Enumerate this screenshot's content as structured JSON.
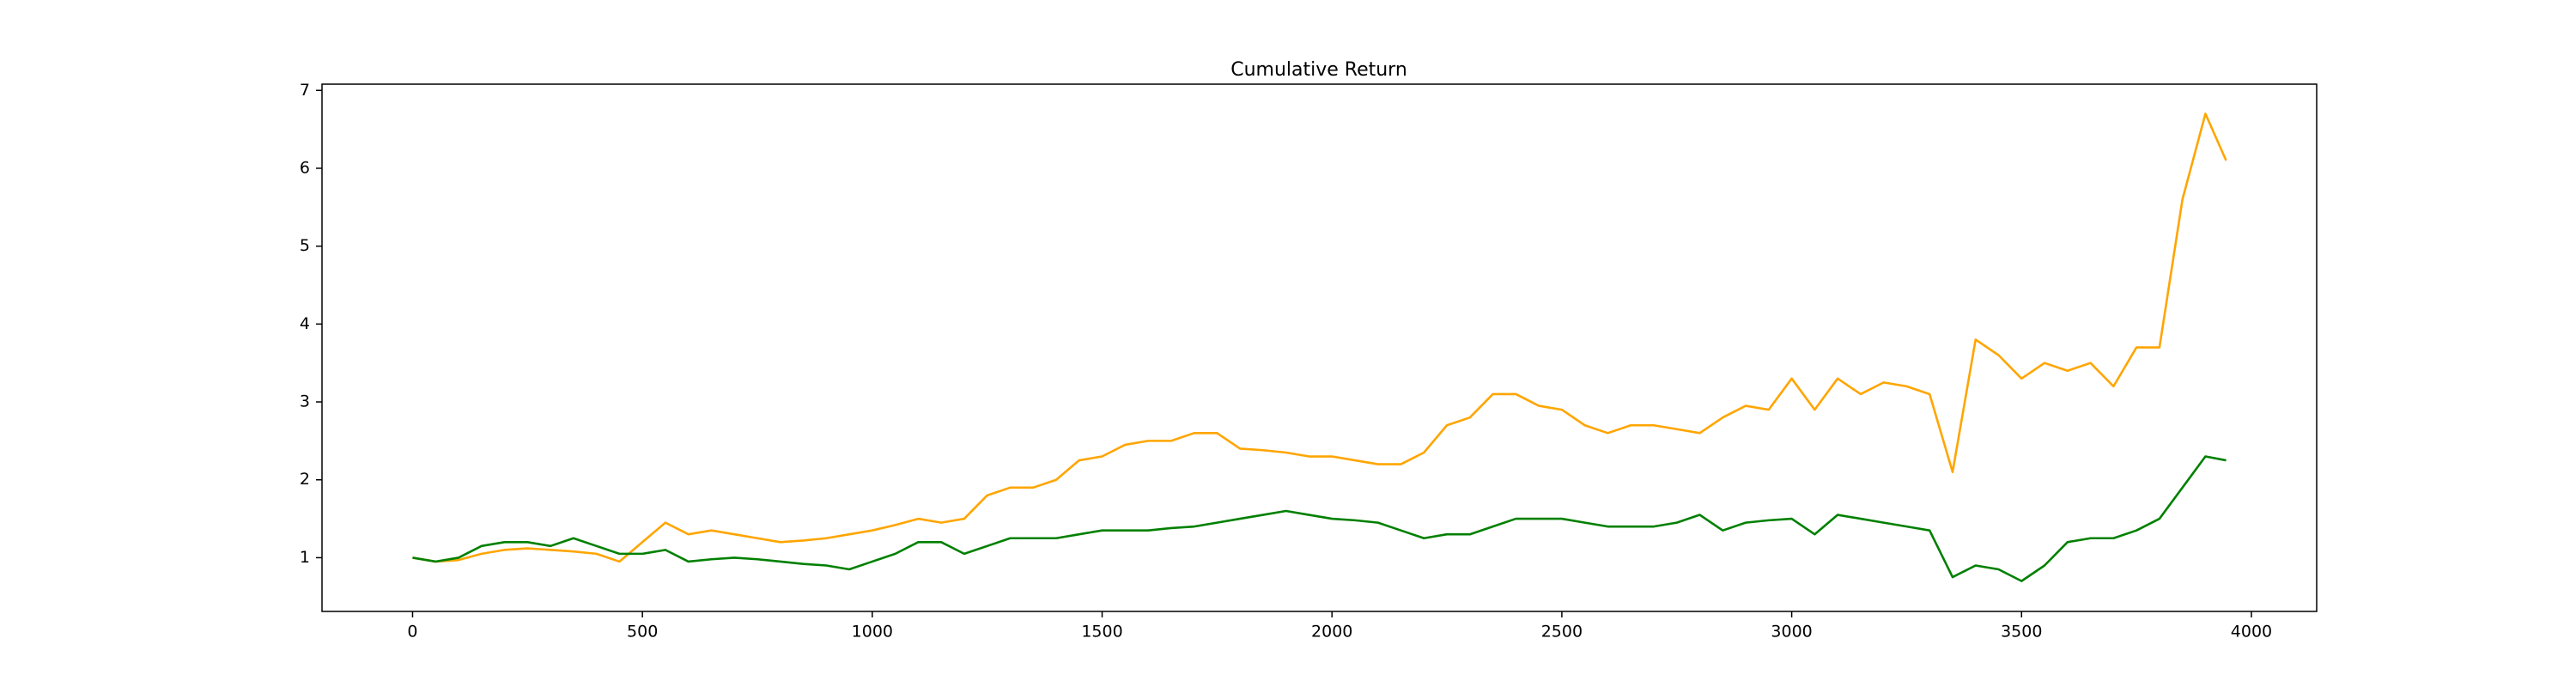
{
  "chart_data": {
    "type": "line",
    "title": "Cumulative Return",
    "x": [
      0,
      50,
      100,
      150,
      200,
      250,
      300,
      350,
      400,
      450,
      500,
      550,
      600,
      650,
      700,
      750,
      800,
      850,
      900,
      950,
      1000,
      1050,
      1100,
      1150,
      1200,
      1250,
      1300,
      1350,
      1400,
      1450,
      1500,
      1550,
      1600,
      1650,
      1700,
      1750,
      1800,
      1850,
      1900,
      1950,
      2000,
      2050,
      2100,
      2150,
      2200,
      2250,
      2300,
      2350,
      2400,
      2450,
      2500,
      2550,
      2600,
      2650,
      2700,
      2750,
      2800,
      2850,
      2900,
      2950,
      3000,
      3050,
      3100,
      3150,
      3200,
      3250,
      3300,
      3350,
      3400,
      3450,
      3500,
      3550,
      3600,
      3650,
      3700,
      3750,
      3800,
      3850,
      3900,
      3945
    ],
    "series": [
      {
        "color": "orange",
        "values": [
          1.0,
          0.95,
          0.97,
          1.05,
          1.1,
          1.12,
          1.1,
          1.08,
          1.05,
          0.95,
          1.2,
          1.45,
          1.3,
          1.35,
          1.3,
          1.25,
          1.2,
          1.22,
          1.25,
          1.3,
          1.35,
          1.42,
          1.5,
          1.45,
          1.5,
          1.8,
          1.9,
          1.9,
          2.0,
          2.25,
          2.3,
          2.45,
          2.5,
          2.5,
          2.6,
          2.6,
          2.4,
          2.38,
          2.35,
          2.3,
          2.3,
          2.25,
          2.2,
          2.2,
          2.35,
          2.7,
          2.8,
          3.1,
          3.1,
          2.95,
          2.9,
          2.7,
          2.6,
          2.7,
          2.7,
          2.65,
          2.6,
          2.8,
          2.95,
          2.9,
          3.3,
          2.9,
          3.3,
          3.1,
          3.25,
          3.2,
          3.1,
          2.1,
          3.8,
          3.6,
          3.3,
          3.5,
          3.4,
          3.5,
          3.2,
          3.7,
          3.7,
          5.6,
          6.7,
          6.1
        ]
      },
      {
        "color": "green",
        "values": [
          1.0,
          0.95,
          1.0,
          1.15,
          1.2,
          1.2,
          1.15,
          1.25,
          1.15,
          1.05,
          1.05,
          1.1,
          0.95,
          0.98,
          1.0,
          0.98,
          0.95,
          0.92,
          0.9,
          0.85,
          0.95,
          1.05,
          1.2,
          1.2,
          1.05,
          1.15,
          1.25,
          1.25,
          1.25,
          1.3,
          1.35,
          1.35,
          1.35,
          1.38,
          1.4,
          1.45,
          1.5,
          1.55,
          1.6,
          1.55,
          1.5,
          1.48,
          1.45,
          1.35,
          1.25,
          1.3,
          1.3,
          1.4,
          1.5,
          1.5,
          1.5,
          1.45,
          1.4,
          1.4,
          1.4,
          1.45,
          1.55,
          1.35,
          1.45,
          1.48,
          1.5,
          1.3,
          1.55,
          1.5,
          1.45,
          1.4,
          1.35,
          0.75,
          0.9,
          0.85,
          0.7,
          0.9,
          1.2,
          1.25,
          1.25,
          1.35,
          1.5,
          1.9,
          2.3,
          2.25
        ]
      }
    ],
    "xlim": [
      -197,
      4142
    ],
    "xticks": [
      0,
      500,
      1000,
      1500,
      2000,
      2500,
      3000,
      3500,
      4000
    ],
    "ylim": [
      0.31,
      7.08
    ],
    "yticks": [
      1,
      2,
      3,
      4,
      5,
      6,
      7
    ],
    "grid": false
  }
}
